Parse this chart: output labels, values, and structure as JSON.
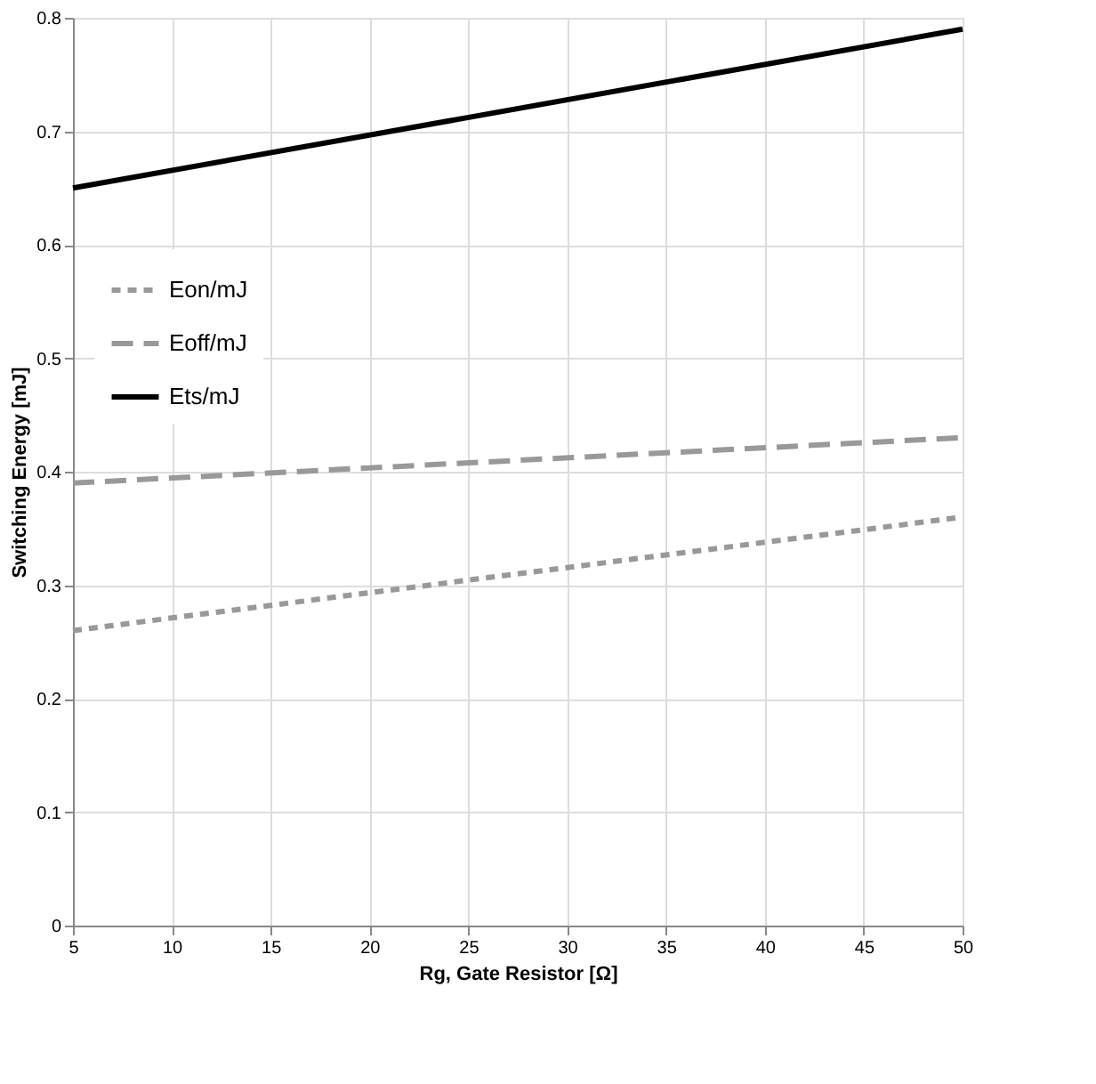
{
  "chart_data": {
    "type": "line",
    "xlabel": "Rg, Gate Resistor [Ω]",
    "ylabel": "Switching Energy [mJ]",
    "x": [
      5,
      50
    ],
    "series": [
      {
        "name": "Eon/mJ",
        "color": "#999999",
        "line_style": "dotted",
        "values": [
          0.26,
          0.36
        ]
      },
      {
        "name": "Eoff/mJ",
        "color": "#999999",
        "line_style": "dashed",
        "values": [
          0.39,
          0.43
        ]
      },
      {
        "name": "Ets/mJ",
        "color": "#000000",
        "line_style": "solid",
        "values": [
          0.65,
          0.79
        ]
      }
    ],
    "xlim": [
      5,
      50
    ],
    "xticks": [
      5,
      10,
      15,
      20,
      25,
      30,
      35,
      40,
      45,
      50
    ],
    "ylim": [
      0,
      0.8
    ],
    "yticks": [
      0,
      0.1,
      0.2,
      0.3,
      0.4,
      0.5,
      0.6,
      0.7,
      0.8
    ],
    "grid": true,
    "legend": "left",
    "marker": "none"
  }
}
